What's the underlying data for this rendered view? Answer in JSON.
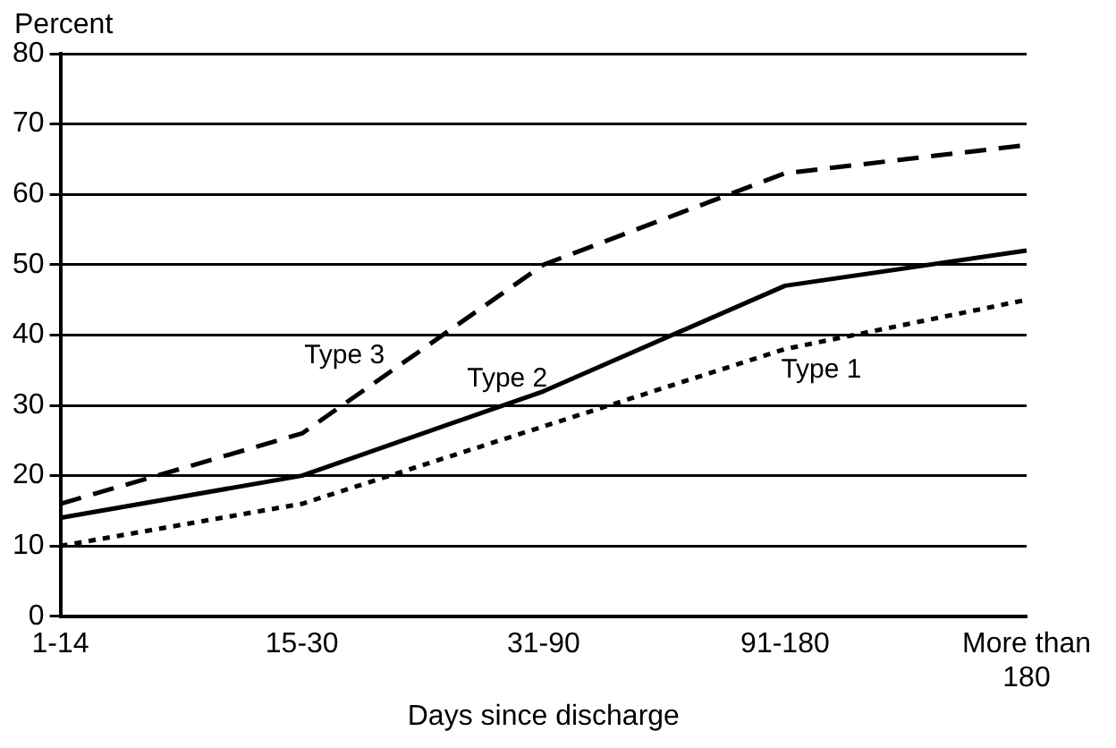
{
  "chart_data": {
    "type": "line",
    "ylabel": "Percent",
    "xlabel": "Days since discharge",
    "categories": [
      "1-14",
      "15-30",
      "31-90",
      "91-180",
      "More than 180"
    ],
    "series": [
      {
        "name": "Type 1",
        "color": "#000000",
        "line_style": "dotted",
        "values": [
          10,
          16,
          27,
          38,
          45
        ]
      },
      {
        "name": "Type 2",
        "color": "#000000",
        "line_style": "solid",
        "values": [
          14,
          20,
          32,
          47,
          52
        ]
      },
      {
        "name": "Type 3",
        "color": "#000000",
        "line_style": "dashed",
        "values": [
          16,
          26,
          50,
          63,
          67
        ]
      }
    ],
    "ylim": [
      0,
      80
    ],
    "yticks": [
      0,
      10,
      20,
      30,
      40,
      50,
      60,
      70,
      80
    ],
    "grid": "y",
    "legend": false,
    "marker": "none"
  }
}
